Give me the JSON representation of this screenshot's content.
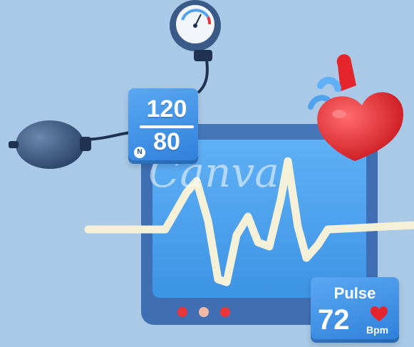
{
  "scene": {
    "background_color": "#a9c9e6",
    "monitor_frame_color": "#3f6fb2",
    "screen_color": "#4fa3ee",
    "wave_color": "#f5f1d8",
    "heart_color": "#e4252b",
    "led_colors": [
      "#e8363a",
      "#f2b9a5",
      "#e8363a"
    ]
  },
  "blood_pressure": {
    "systolic": "120",
    "diastolic": "80",
    "badge": "N"
  },
  "pulse": {
    "title": "Pulse",
    "value": "72",
    "unit": "Bpm"
  },
  "watermark": "Canva",
  "icons": [
    "pressure-gauge-icon",
    "pump-bulb-icon",
    "heart-icon",
    "small-heart-icon"
  ]
}
